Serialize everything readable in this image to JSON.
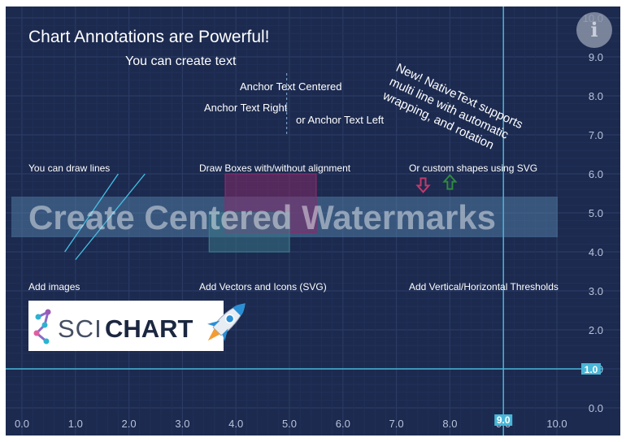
{
  "chart_data": {
    "type": "scatter",
    "title": "Chart Annotations are Powerful!",
    "xlim": [
      0,
      10
    ],
    "ylim": [
      0,
      10
    ],
    "x_ticks": [
      "0.0",
      "1.0",
      "2.0",
      "3.0",
      "4.0",
      "5.0",
      "6.0",
      "7.0",
      "8.0",
      "9.0",
      "10.0"
    ],
    "y_ticks": [
      "0.0",
      "1.0",
      "2.0",
      "3.0",
      "4.0",
      "5.0",
      "6.0",
      "7.0",
      "8.0",
      "9.0",
      "10.0"
    ],
    "grid": true,
    "annotations": {
      "title": "Chart Annotations are Powerful!",
      "create_text": "You can create text",
      "anchor_centered": "Anchor Text Centered",
      "anchor_right": "Anchor Text Right",
      "anchor_left": "or Anchor Text Left",
      "native_text": "New! NativeText supports multi line with automatic wrapping, and rotation",
      "draw_lines": "You can draw lines",
      "draw_boxes": "Draw Boxes with/without alignment",
      "custom_shapes": "Or custom shapes using SVG",
      "watermark": "Create Centered Watermarks",
      "add_images": "Add images",
      "add_vectors": "Add Vectors and Icons (SVG)",
      "add_thresholds": "Add Vertical/Horizontal Thresholds"
    },
    "logo_text": {
      "sci": "SCI",
      "chart": "CHART"
    },
    "lines": [
      {
        "x1": 0.8,
        "y1": 4.0,
        "x2": 1.8,
        "y2": 6.0
      },
      {
        "x1": 1.0,
        "y1": 3.8,
        "x2": 2.3,
        "y2": 6.0
      }
    ],
    "boxes": [
      {
        "x1": 3.8,
        "y1": 4.5,
        "x2": 5.5,
        "y2": 6.0,
        "color": "#8b2a6b"
      },
      {
        "x1": 3.5,
        "y1": 4.0,
        "x2": 5.0,
        "y2": 5.0,
        "color": "#3a7a8a"
      }
    ],
    "arrows": [
      {
        "x": 7.5,
        "y": 5.7,
        "direction": "down",
        "color": "#c23a6b"
      },
      {
        "x": 8.0,
        "y": 5.8,
        "direction": "up",
        "color": "#2e8b3e"
      }
    ],
    "thresholds": {
      "vertical": {
        "x": 9.0,
        "label": "9.0"
      },
      "horizontal": {
        "y": 1.0,
        "label": "1.0"
      }
    },
    "colors": {
      "background": "#1c2a4f",
      "grid_major": "#2a3a63",
      "grid_minor": "#22315a",
      "axis_text": "#b9c3dc",
      "threshold": "#48b6d8",
      "watermark_band": "#5a8bb4"
    }
  },
  "ui": {
    "info_icon": "info-icon"
  }
}
